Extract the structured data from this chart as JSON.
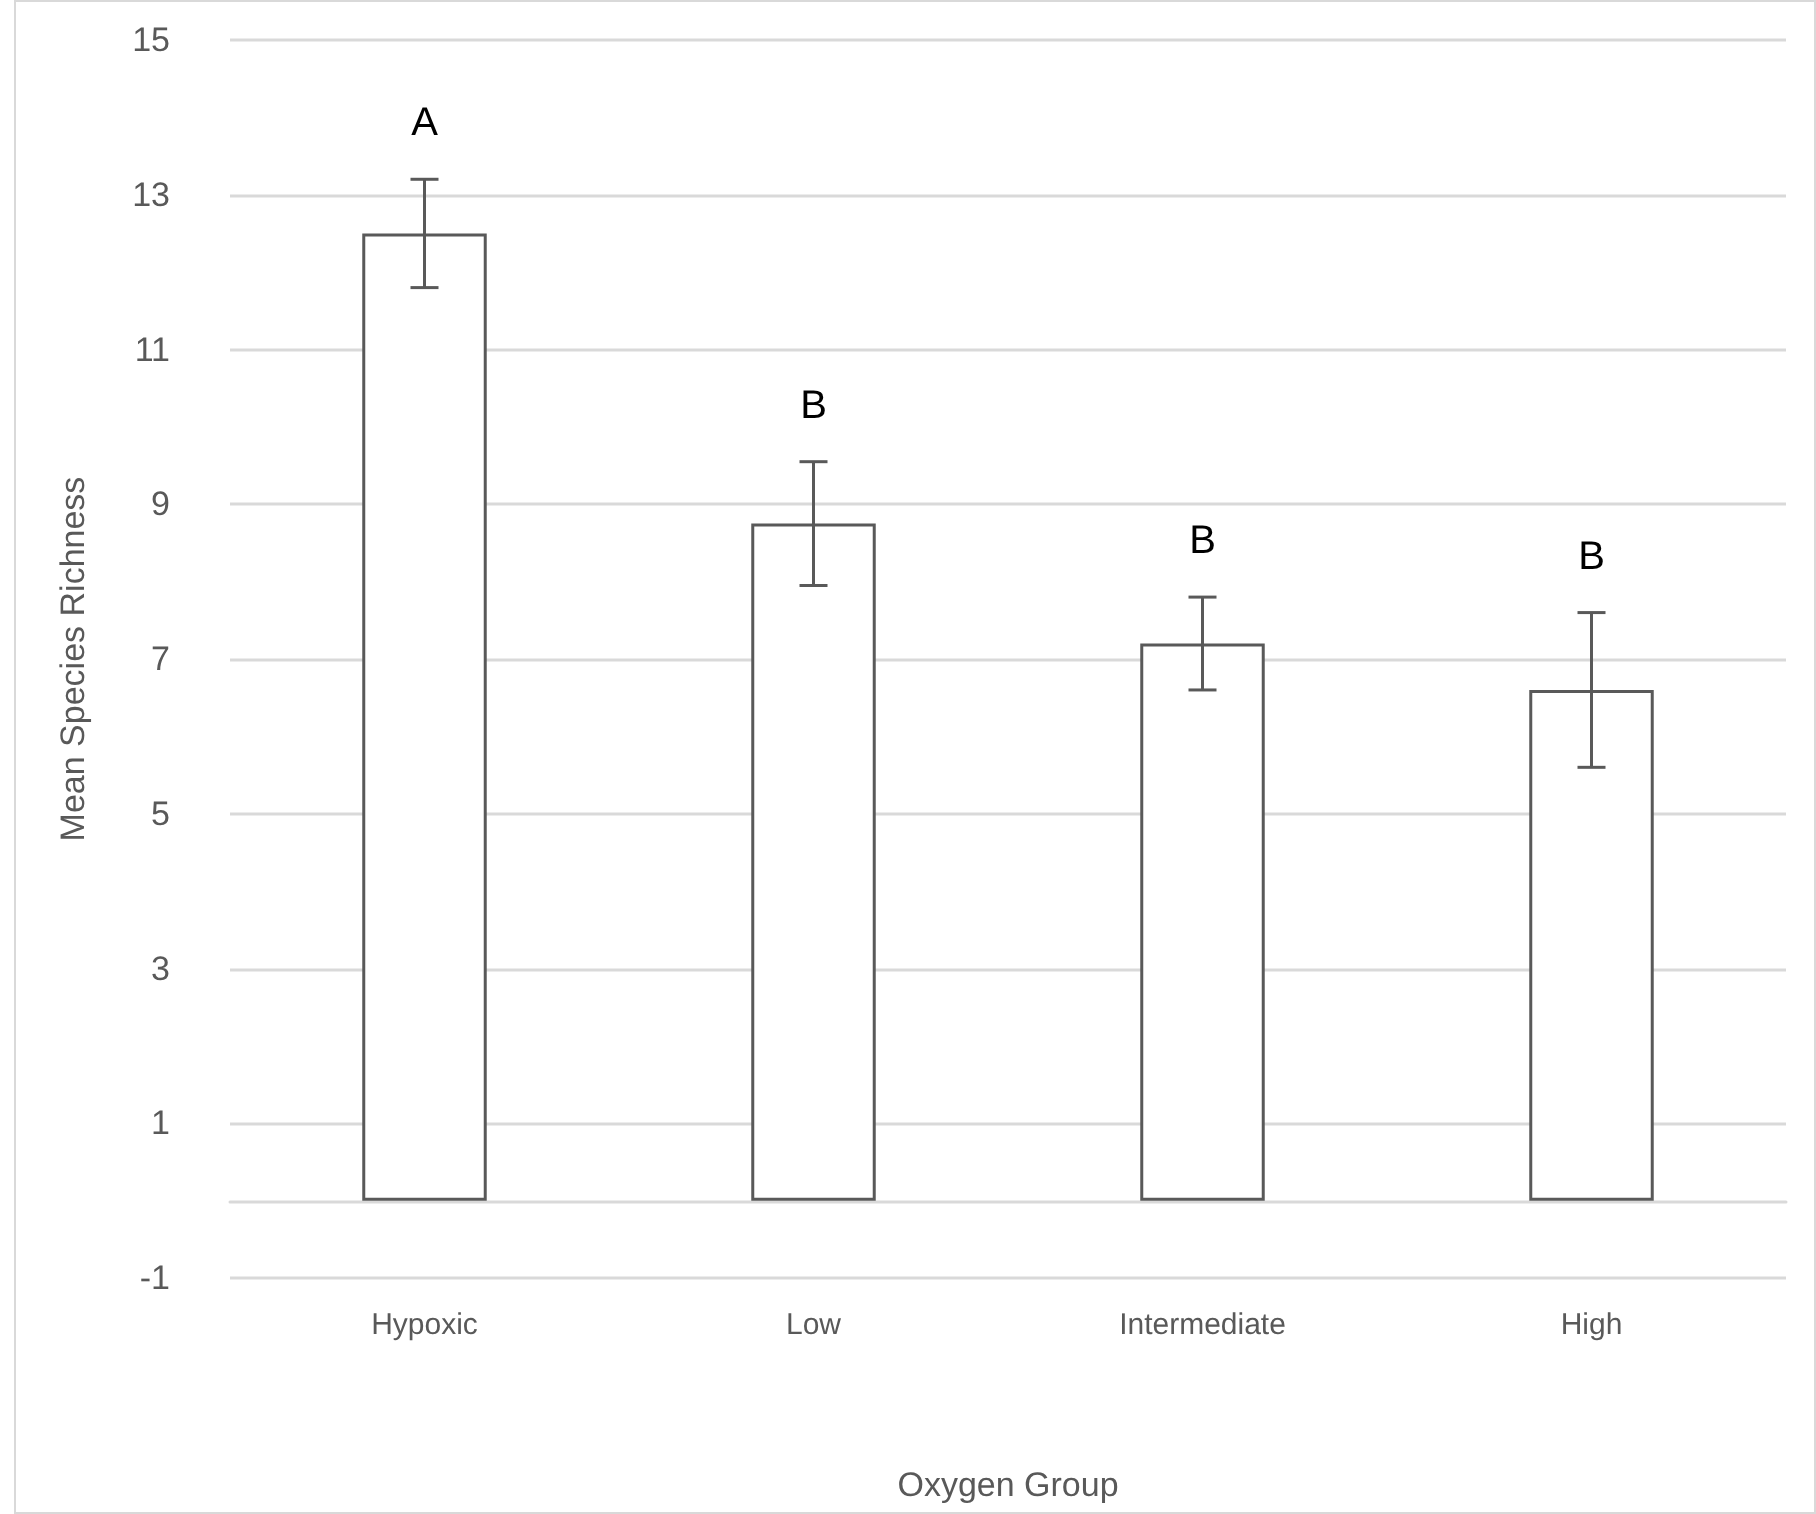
{
  "chart_data": {
    "type": "bar",
    "xlabel": "Oxygen Group",
    "ylabel": "Mean Species Richness",
    "categories": [
      "Hypoxic",
      "Low",
      "Intermediate",
      "High"
    ],
    "values": [
      12.5,
      8.75,
      7.2,
      6.6
    ],
    "errors": [
      0.7,
      0.8,
      0.6,
      1.0
    ],
    "color": "#ffffff",
    "ylim": [
      -1,
      15
    ],
    "yticks": [
      -1,
      1,
      3,
      5,
      7,
      9,
      11,
      13,
      15
    ],
    "grid": "y",
    "annotations": [
      "A",
      "B",
      "B",
      "B"
    ]
  }
}
